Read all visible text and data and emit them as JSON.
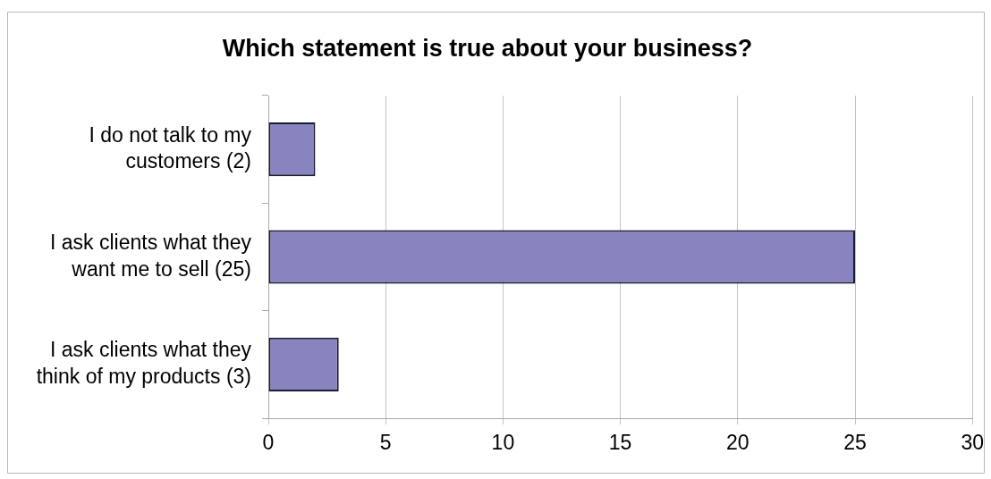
{
  "chart_data": {
    "type": "bar",
    "orientation": "horizontal",
    "title": "Which statement is true about your business?",
    "categories": [
      "I do not talk to my customers (2)",
      "I ask clients what they want me to sell (25)",
      "I ask clients what they think of my products (3)"
    ],
    "values": [
      2,
      25,
      3
    ],
    "color": "#8884c0",
    "xlim": [
      0,
      30
    ],
    "xticks": [
      0,
      5,
      10,
      15,
      20,
      25,
      30
    ],
    "grid": "x"
  }
}
